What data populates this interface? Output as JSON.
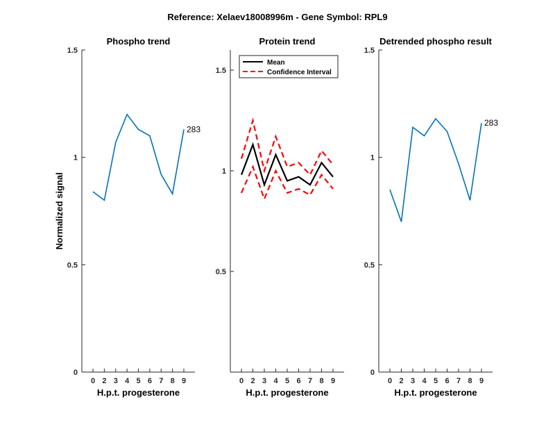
{
  "figure": {
    "suptitle": "Reference:  Xelaev18008996m - Gene Symbol:  RPL9"
  },
  "chart_data": [
    {
      "type": "line",
      "title": "Phospho trend",
      "xlabel": "H.p.t. progesterone",
      "ylabel": "Normalized signal",
      "categories": [
        "0",
        "2",
        "3",
        "4",
        "5",
        "6",
        "7",
        "8",
        "9"
      ],
      "ylim": [
        0,
        1.5
      ],
      "yticks": [
        0,
        0.5,
        1,
        1.5
      ],
      "ytick_labels": [
        "0",
        "0.5",
        "1",
        "1.5"
      ],
      "series": [
        {
          "name": "Phospho",
          "color": "#0072BD",
          "style": "solid",
          "values": [
            0.84,
            0.8,
            1.07,
            1.2,
            1.13,
            1.1,
            0.92,
            0.83,
            1.13
          ]
        }
      ],
      "annotation": "283"
    },
    {
      "type": "line",
      "title": "Protein trend",
      "xlabel": "H.p.t. progesterone",
      "ylabel": "",
      "categories": [
        "0",
        "2",
        "3",
        "4",
        "5",
        "6",
        "7",
        "8",
        "9"
      ],
      "ylim": [
        0,
        1.6
      ],
      "yticks": [
        0.5,
        1,
        1.5
      ],
      "ytick_labels": [
        "0.5",
        "1",
        "1.5"
      ],
      "legend": {
        "position": "top-left",
        "entries": [
          "Mean",
          "Confidence Interval"
        ]
      },
      "series": [
        {
          "name": "Mean",
          "color": "#000000",
          "style": "solid",
          "values": [
            0.98,
            1.13,
            0.93,
            1.08,
            0.95,
            0.97,
            0.93,
            1.04,
            0.97
          ]
        },
        {
          "name": "Confidence Interval",
          "color": "#FF0000",
          "style": "dashed",
          "values": [
            1.06,
            1.25,
            1.0,
            1.17,
            1.02,
            1.04,
            0.98,
            1.1,
            1.03
          ]
        },
        {
          "name": "Confidence Interval (lower)",
          "color": "#FF0000",
          "style": "dashed",
          "values": [
            0.89,
            1.02,
            0.86,
            1.0,
            0.89,
            0.91,
            0.88,
            0.98,
            0.91
          ]
        }
      ]
    },
    {
      "type": "line",
      "title": "Detrended phospho result",
      "xlabel": "H.p.t. progesterone",
      "ylabel": "",
      "categories": [
        "0",
        "2",
        "3",
        "4",
        "5",
        "6",
        "7",
        "8",
        "9"
      ],
      "ylim": [
        0,
        1.5
      ],
      "yticks": [
        0,
        0.5,
        1,
        1.5
      ],
      "ytick_labels": [
        "0",
        "0.5",
        "1",
        "1.5"
      ],
      "series": [
        {
          "name": "Detrended",
          "color": "#0072BD",
          "style": "solid",
          "values": [
            0.85,
            0.7,
            1.14,
            1.1,
            1.18,
            1.12,
            0.97,
            0.8,
            1.16
          ]
        }
      ],
      "annotation": "283"
    }
  ]
}
